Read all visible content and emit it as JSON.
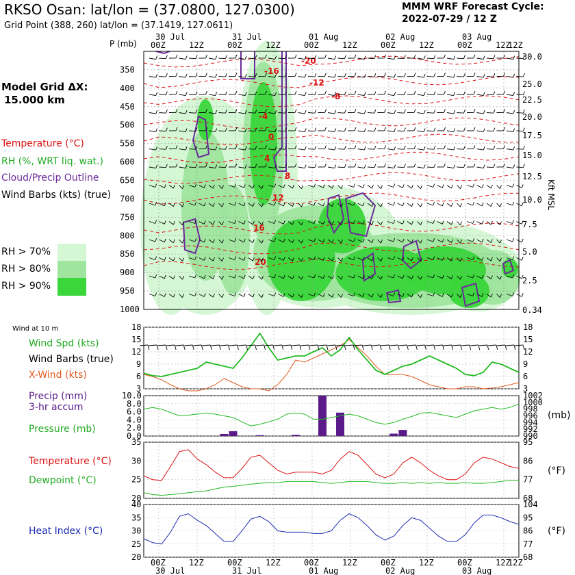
{
  "header": {
    "station": "RKSO Osan:  lat/lon = (37.0800, 127.0300)",
    "gridpoint": "Grid Point (388, 260) lat/lon = (37.1419, 127.0611)",
    "model": "MMM WRF Forecast Cycle:",
    "cycle": "2022-07-29 / 12  Z",
    "grid_label": "Model Grid ΔX:",
    "grid_value": "15.000 km"
  },
  "legend": {
    "temperature": "Temperature (°C)",
    "rh": "RH (%, WRT liq. wat.)",
    "cloud": "Cloud/Precip Outline",
    "barbs": "Wind Barbs (kts) (true)",
    "rh70": "RH > 70%",
    "rh80": "RH > 80%",
    "rh90": "RH > 90%",
    "p_label": "P (mb)",
    "kft_label": "Kft MSL"
  },
  "panels": {
    "wind_at_10m": "Wind at 10 m",
    "wind_spd": "Wind Spd (kts)",
    "wind_barbs": "Wind Barbs (true)",
    "xwind": "X-Wind (kts)",
    "precip": "Precip (mm)",
    "precip2": "3-hr accum",
    "pressure": "Pressure (mb)",
    "mb_unit": "(mb)",
    "temperature": "Temperature (°C)",
    "dewpoint": "Dewpoint (°C)",
    "f_unit": "(°F)",
    "heat_index": "Heat Index (°C)",
    "f_unit2": "(°F)"
  },
  "colors": {
    "temp": "#dd1111",
    "rh": "#22bb22",
    "cloud": "#6a2a9a",
    "barb": "#000000",
    "xwind": "#e05a20",
    "precip": "#5a1a8a",
    "heat": "#1a2ab0",
    "rh70": "#d4f7d4",
    "rh80": "#9fe59f",
    "rh90": "#3ad63a"
  },
  "chart_data": [
    {
      "type": "time-height cross-section",
      "name": "upper",
      "x_ticks": [
        "00Z",
        "12Z",
        "00Z",
        "12Z",
        "00Z",
        "12Z",
        "00Z",
        "12Z",
        "00Z",
        "12Z"
      ],
      "x_dates": [
        "30 Jul",
        "31 Jul",
        "01 Aug",
        "02 Aug",
        "03 Aug"
      ],
      "pressure_levels": [
        "350",
        "400",
        "450",
        "500",
        "550",
        "600",
        "650",
        "700",
        "750",
        "800",
        "850",
        "900",
        "950",
        "1000"
      ],
      "height_kft": [
        "30.0",
        "25.0",
        "22.5",
        "20.0",
        "17.5",
        "15.0",
        "12.5",
        "10.0",
        "7.5",
        "5.0",
        "2.5",
        "0.34"
      ],
      "isotherm_labels": [
        "-20",
        "-16",
        "-12",
        "-8",
        "-4",
        "0",
        "4",
        "8",
        "12",
        "16",
        "20"
      ]
    },
    {
      "type": "line",
      "name": "wind",
      "yticks_left": [
        "3",
        "6",
        "9",
        "12",
        "15",
        "18"
      ],
      "yticks_right": [
        "3",
        "6",
        "9",
        "12",
        "15",
        "18"
      ],
      "ylim": [
        3,
        18
      ],
      "wind_speed": [
        6.8,
        6.2,
        6.0,
        6.5,
        7.0,
        7.5,
        8.0,
        9.5,
        9.0,
        8.5,
        8.0,
        10.5,
        13.5,
        16.5,
        13.0,
        10.0,
        10.5,
        11.0,
        11.0,
        12.0,
        13.0,
        11.0,
        12.5,
        15.5,
        12.5,
        10.0,
        7.5,
        6.5,
        7.5,
        8.5,
        9.0,
        10.0,
        11.0,
        10.0,
        9.0,
        8.0,
        6.5,
        6.2,
        7.0,
        9.5,
        9.0,
        8.0,
        7.0
      ],
      "x_wind": [
        6.5,
        6.0,
        5.2,
        4.0,
        3.0,
        2.5,
        2.5,
        3.0,
        4.0,
        5.5,
        4.5,
        3.5,
        3.0,
        3.0,
        2.5,
        4.0,
        6.5,
        10.0,
        9.5,
        10.5,
        11.5,
        12.5,
        13.5,
        15.0,
        13.0,
        11.0,
        8.5,
        6.5,
        6.5,
        6.5,
        6.0,
        5.0,
        4.0,
        3.5,
        3.0,
        3.0,
        3.5,
        3.5,
        3.0,
        3.2,
        3.5,
        4.0,
        4.5
      ]
    },
    {
      "type": "bar+line",
      "name": "precip_pressure",
      "yticks_left": [
        "0.0",
        "2.0",
        "4.0",
        "6.0",
        "8.0",
        "10.0"
      ],
      "yticks_right": [
        "990",
        "992",
        "994",
        "996",
        "998",
        "1000",
        "1002"
      ],
      "precip_ylim": [
        0,
        10
      ],
      "precip_bars": [
        {
          "step": 9,
          "value": 0.5
        },
        {
          "step": 10,
          "value": 1.2
        },
        {
          "step": 13,
          "value": 0.2
        },
        {
          "step": 17,
          "value": 0.3
        },
        {
          "step": 20,
          "value": 10.0
        },
        {
          "step": 22,
          "value": 5.8
        },
        {
          "step": 28,
          "value": 0.6
        },
        {
          "step": 29,
          "value": 1.5
        }
      ],
      "pressure_ylim": [
        990,
        1002
      ],
      "pressure": [
        998.0,
        998.5,
        998.0,
        997.0,
        996.0,
        996.2,
        996.5,
        996.8,
        996.5,
        996.0,
        995.5,
        994.2,
        993.0,
        993.5,
        994.2,
        995.0,
        996.5,
        996.8,
        996.5,
        995.0,
        995.0,
        995.5,
        996.0,
        996.5,
        996.0,
        995.0,
        994.0,
        993.5,
        994.0,
        995.0,
        995.8,
        996.8,
        997.0,
        996.5,
        996.0,
        995.5,
        996.5,
        997.5,
        998.0,
        998.5,
        998.0,
        998.5,
        999.5
      ]
    },
    {
      "type": "line",
      "name": "temperature",
      "yticks_left": [
        "20",
        "25",
        "30",
        "35"
      ],
      "yticks_right": [
        "68",
        "77",
        "86",
        "95"
      ],
      "ylim": [
        20,
        35
      ],
      "temperature": [
        26.0,
        25.0,
        24.8,
        28.5,
        32.5,
        33.0,
        30.5,
        29.0,
        27.0,
        25.5,
        25.5,
        28.0,
        31.0,
        31.5,
        29.5,
        27.5,
        26.5,
        27.0,
        27.0,
        27.0,
        26.5,
        27.5,
        30.5,
        32.5,
        31.5,
        29.0,
        26.5,
        25.5,
        26.5,
        29.5,
        31.0,
        29.5,
        27.5,
        26.0,
        25.0,
        25.0,
        26.5,
        29.5,
        31.0,
        30.5,
        29.5,
        28.5,
        28.0
      ],
      "dewpoint": [
        21.5,
        21.0,
        20.8,
        21.0,
        21.2,
        21.5,
        21.8,
        22.0,
        22.5,
        23.0,
        23.2,
        23.5,
        23.8,
        24.0,
        24.2,
        24.2,
        24.5,
        24.5,
        24.5,
        24.5,
        24.2,
        24.0,
        24.2,
        24.5,
        24.5,
        24.5,
        24.2,
        24.0,
        24.0,
        24.2,
        24.0,
        24.2,
        24.0,
        24.2,
        24.0,
        24.0,
        24.2,
        24.0,
        24.0,
        24.2,
        24.5,
        24.8,
        24.8
      ]
    },
    {
      "type": "line",
      "name": "heat_index",
      "yticks_left": [
        "20",
        "25",
        "30",
        "35",
        "40"
      ],
      "yticks_right": [
        "68",
        "77",
        "86",
        "95",
        "104"
      ],
      "ylim": [
        20,
        40
      ],
      "heat_index": [
        27.0,
        25.5,
        25.0,
        29.5,
        35.5,
        36.5,
        34.0,
        32.0,
        29.0,
        26.0,
        26.0,
        30.0,
        34.5,
        35.5,
        33.5,
        30.0,
        29.5,
        29.5,
        29.5,
        29.0,
        29.0,
        30.0,
        34.0,
        36.5,
        35.0,
        32.0,
        28.5,
        26.5,
        28.0,
        32.0,
        35.0,
        34.0,
        31.0,
        28.0,
        26.0,
        26.0,
        28.5,
        33.0,
        36.0,
        36.0,
        35.0,
        33.5,
        32.5
      ]
    }
  ]
}
